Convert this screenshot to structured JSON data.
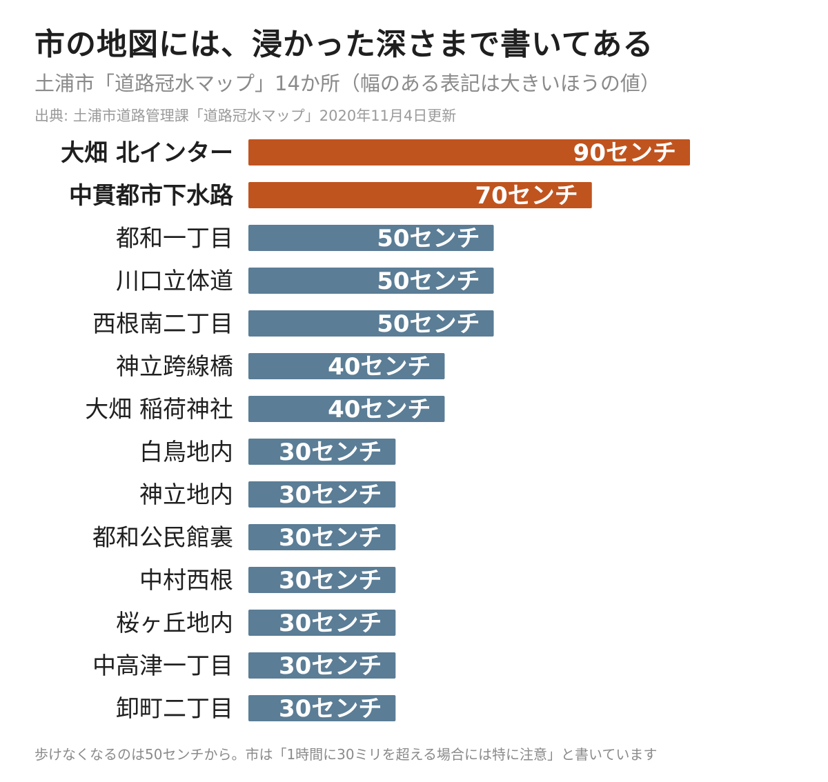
{
  "title": "市の地図には、浸かった深さまで書いてある",
  "subtitle": "土浦市「道路冠水マップ」14か所（幅のある表記は大きいほうの値）",
  "source": "出典: 土浦市道路管理課「道路冠水マップ」2020年11月4日更新",
  "footnote": "歩けなくなるのは50センチから。市は「1時間に30ミリを超える場合には特に注意」と書いています",
  "chart_data": {
    "type": "bar",
    "orientation": "horizontal",
    "categories": [
      "大畑 北インター",
      "中貫都市下水路",
      "都和一丁目",
      "川口立体道",
      "西根南二丁目",
      "神立跨線橋",
      "大畑 稲荷神社",
      "白鳥地内",
      "神立地内",
      "都和公民館裏",
      "中村西根",
      "桜ヶ丘地内",
      "中高津一丁目",
      "卸町二丁目"
    ],
    "values": [
      90,
      70,
      50,
      50,
      50,
      40,
      40,
      30,
      30,
      30,
      30,
      30,
      30,
      30
    ],
    "value_unit": "センチ",
    "highlighted": [
      true,
      true,
      false,
      false,
      false,
      false,
      false,
      false,
      false,
      false,
      false,
      false,
      false,
      false
    ],
    "colors": {
      "highlight": "#c0541f",
      "default": "#5b7d96"
    },
    "xlim": [
      0,
      90
    ],
    "grid": false,
    "legend": "none"
  }
}
